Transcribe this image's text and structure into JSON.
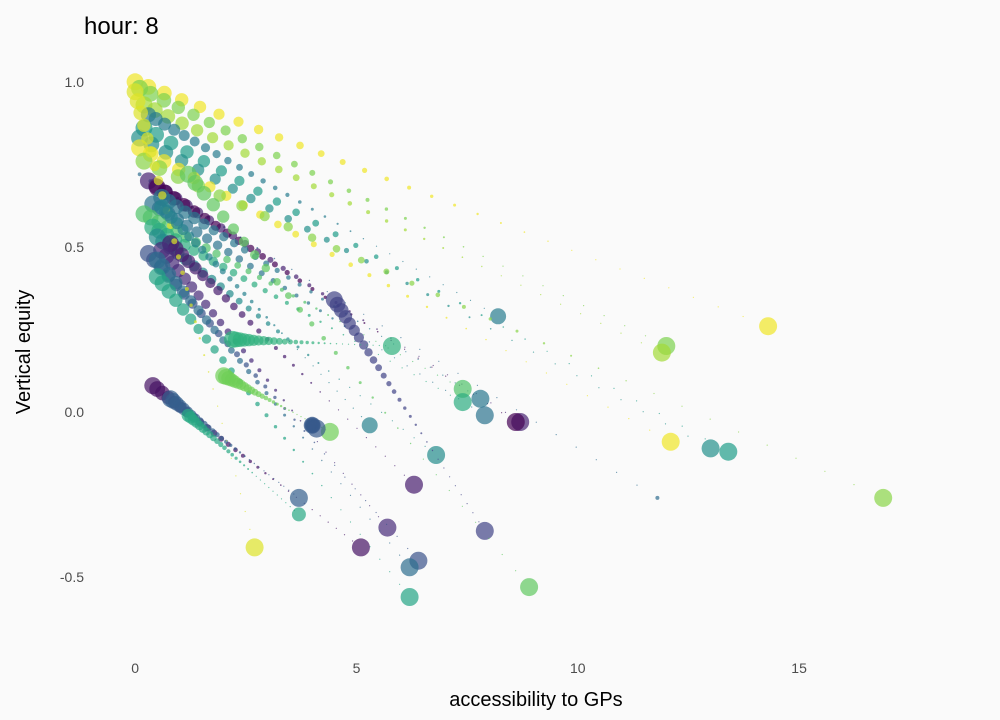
{
  "chart_data": {
    "type": "scatter",
    "title": "hour: 8",
    "xlabel": "accessibility to GPs",
    "ylabel": "Vertical equity",
    "xlim": [
      -0.5,
      19.2
    ],
    "ylim": [
      -0.66,
      1.06
    ],
    "x_ticks": [
      0,
      5,
      10,
      15
    ],
    "x_tick_labels": [
      "0",
      "5",
      "10",
      "15"
    ],
    "y_ticks": [
      -0.5,
      0.0,
      0.5,
      1.0
    ],
    "y_tick_labels": [
      "-0.5",
      "0.0",
      "0.5",
      "1.0"
    ],
    "grid": false,
    "legend": "none",
    "color_scale": "viridis",
    "point_alpha": 0.7,
    "trails": [
      {
        "start": [
          0.0,
          1.0
        ],
        "end": [
          14.3,
          0.26
        ],
        "color": 0.98,
        "size": 9
      },
      {
        "start": [
          0.1,
          0.98
        ],
        "end": [
          12.0,
          0.2
        ],
        "color": 0.8,
        "size": 9
      },
      {
        "start": [
          0.2,
          0.93
        ],
        "end": [
          11.9,
          0.18
        ],
        "color": 0.86,
        "size": 9
      },
      {
        "start": [
          0.3,
          0.9
        ],
        "end": [
          8.2,
          0.29
        ],
        "color": 0.42,
        "size": 8
      },
      {
        "start": [
          0.2,
          0.86
        ],
        "end": [
          13.4,
          -0.12
        ],
        "color": 0.55,
        "size": 9
      },
      {
        "start": [
          0.1,
          0.83
        ],
        "end": [
          13.0,
          -0.11
        ],
        "color": 0.5,
        "size": 9
      },
      {
        "start": [
          0.1,
          0.8
        ],
        "end": [
          12.1,
          -0.09
        ],
        "color": 0.98,
        "size": 9
      },
      {
        "start": [
          0.2,
          0.76
        ],
        "end": [
          16.9,
          -0.26
        ],
        "color": 0.82,
        "size": 9
      },
      {
        "start": [
          0.1,
          0.72
        ],
        "end": [
          11.8,
          -0.26
        ],
        "color": 0.35,
        "size": 2
      },
      {
        "start": [
          0.3,
          0.7
        ],
        "end": [
          8.7,
          -0.03
        ],
        "color": 0.1,
        "size": 9
      },
      {
        "start": [
          0.5,
          0.68
        ],
        "end": [
          8.6,
          -0.03
        ],
        "color": 0.0,
        "size": 9
      },
      {
        "start": [
          0.6,
          0.65
        ],
        "end": [
          7.8,
          0.04
        ],
        "color": 0.4,
        "size": 9
      },
      {
        "start": [
          0.4,
          0.63
        ],
        "end": [
          7.9,
          -0.01
        ],
        "color": 0.38,
        "size": 9
      },
      {
        "start": [
          0.2,
          0.6
        ],
        "end": [
          7.4,
          0.07
        ],
        "color": 0.72,
        "size": 9
      },
      {
        "start": [
          0.4,
          0.56
        ],
        "end": [
          7.4,
          0.03
        ],
        "color": 0.62,
        "size": 9
      },
      {
        "start": [
          0.5,
          0.53
        ],
        "end": [
          6.8,
          -0.13
        ],
        "color": 0.48,
        "size": 9
      },
      {
        "start": [
          0.8,
          0.51
        ],
        "end": [
          6.3,
          -0.22
        ],
        "color": 0.08,
        "size": 9
      },
      {
        "start": [
          0.6,
          0.49
        ],
        "end": [
          5.7,
          -0.35
        ],
        "color": 0.12,
        "size": 9
      },
      {
        "start": [
          0.3,
          0.48
        ],
        "end": [
          6.4,
          -0.45
        ],
        "color": 0.25,
        "size": 9
      },
      {
        "start": [
          0.5,
          0.46
        ],
        "end": [
          6.2,
          -0.47
        ],
        "color": 0.36,
        "size": 9
      },
      {
        "start": [
          0.5,
          0.41
        ],
        "end": [
          6.2,
          -0.56
        ],
        "color": 0.58,
        "size": 9
      },
      {
        "start": [
          4.5,
          0.34
        ],
        "end": [
          7.9,
          -0.36
        ],
        "color": 0.2,
        "size": 9
      },
      {
        "start": [
          2.2,
          0.22
        ],
        "end": [
          5.8,
          0.2
        ],
        "color": 0.64,
        "size": 9
      },
      {
        "start": [
          2.0,
          0.11
        ],
        "end": [
          4.4,
          -0.06
        ],
        "color": 0.78,
        "size": 9
      },
      {
        "start": [
          0.4,
          0.08
        ],
        "end": [
          5.1,
          -0.41
        ],
        "color": 0.05,
        "size": 9
      },
      {
        "start": [
          0.8,
          0.04
        ],
        "end": [
          3.7,
          -0.26
        ],
        "color": 0.3,
        "size": 9
      },
      {
        "start": [
          1.2,
          -0.01
        ],
        "end": [
          3.7,
          -0.31
        ],
        "color": 0.6,
        "size": 7
      },
      {
        "start": [
          4.0,
          -0.04
        ],
        "end": [
          4.1,
          -0.05
        ],
        "color": 0.28,
        "size": 9
      },
      {
        "start": [
          0.0,
          0.97
        ],
        "end": [
          2.7,
          -0.41
        ],
        "color": 0.95,
        "size": 9
      },
      {
        "start": [
          1.2,
          0.72
        ],
        "end": [
          8.9,
          -0.53
        ],
        "color": 0.75,
        "size": 9
      },
      {
        "start": [
          0.6,
          0.62
        ],
        "end": [
          5.3,
          -0.04
        ],
        "color": 0.44,
        "size": 8
      }
    ],
    "points_per_trail": 30
  }
}
